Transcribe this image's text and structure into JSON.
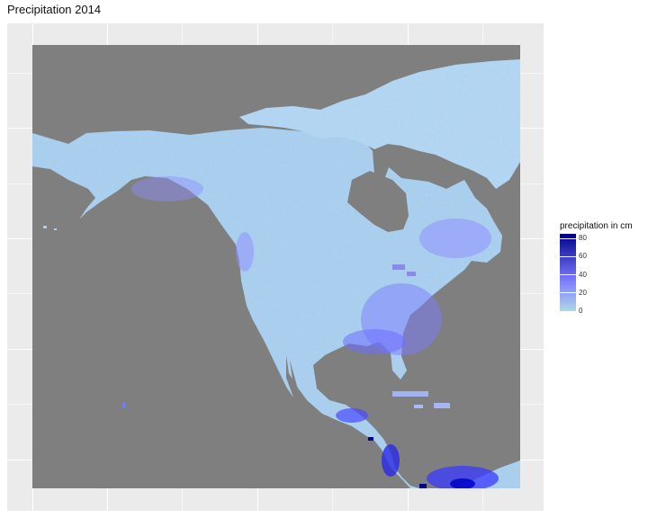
{
  "title": "Precipitation 2014",
  "legend": {
    "title": "precipitation in cm",
    "ticks": [
      {
        "label": "80",
        "value": 80
      },
      {
        "label": "60",
        "value": 60
      },
      {
        "label": "40",
        "value": 40
      },
      {
        "label": "20",
        "value": 20
      },
      {
        "label": "0",
        "value": 0
      }
    ],
    "min": 0,
    "max": 85,
    "colors": {
      "low": "#add8e6",
      "mid": "#7b7bff",
      "high": "#00008b",
      "nodata": "#7f7f7f"
    }
  },
  "map": {
    "panel_background": "#ebebeb",
    "water_color": "#7f7f7f",
    "grid_color": "#ffffff"
  }
}
